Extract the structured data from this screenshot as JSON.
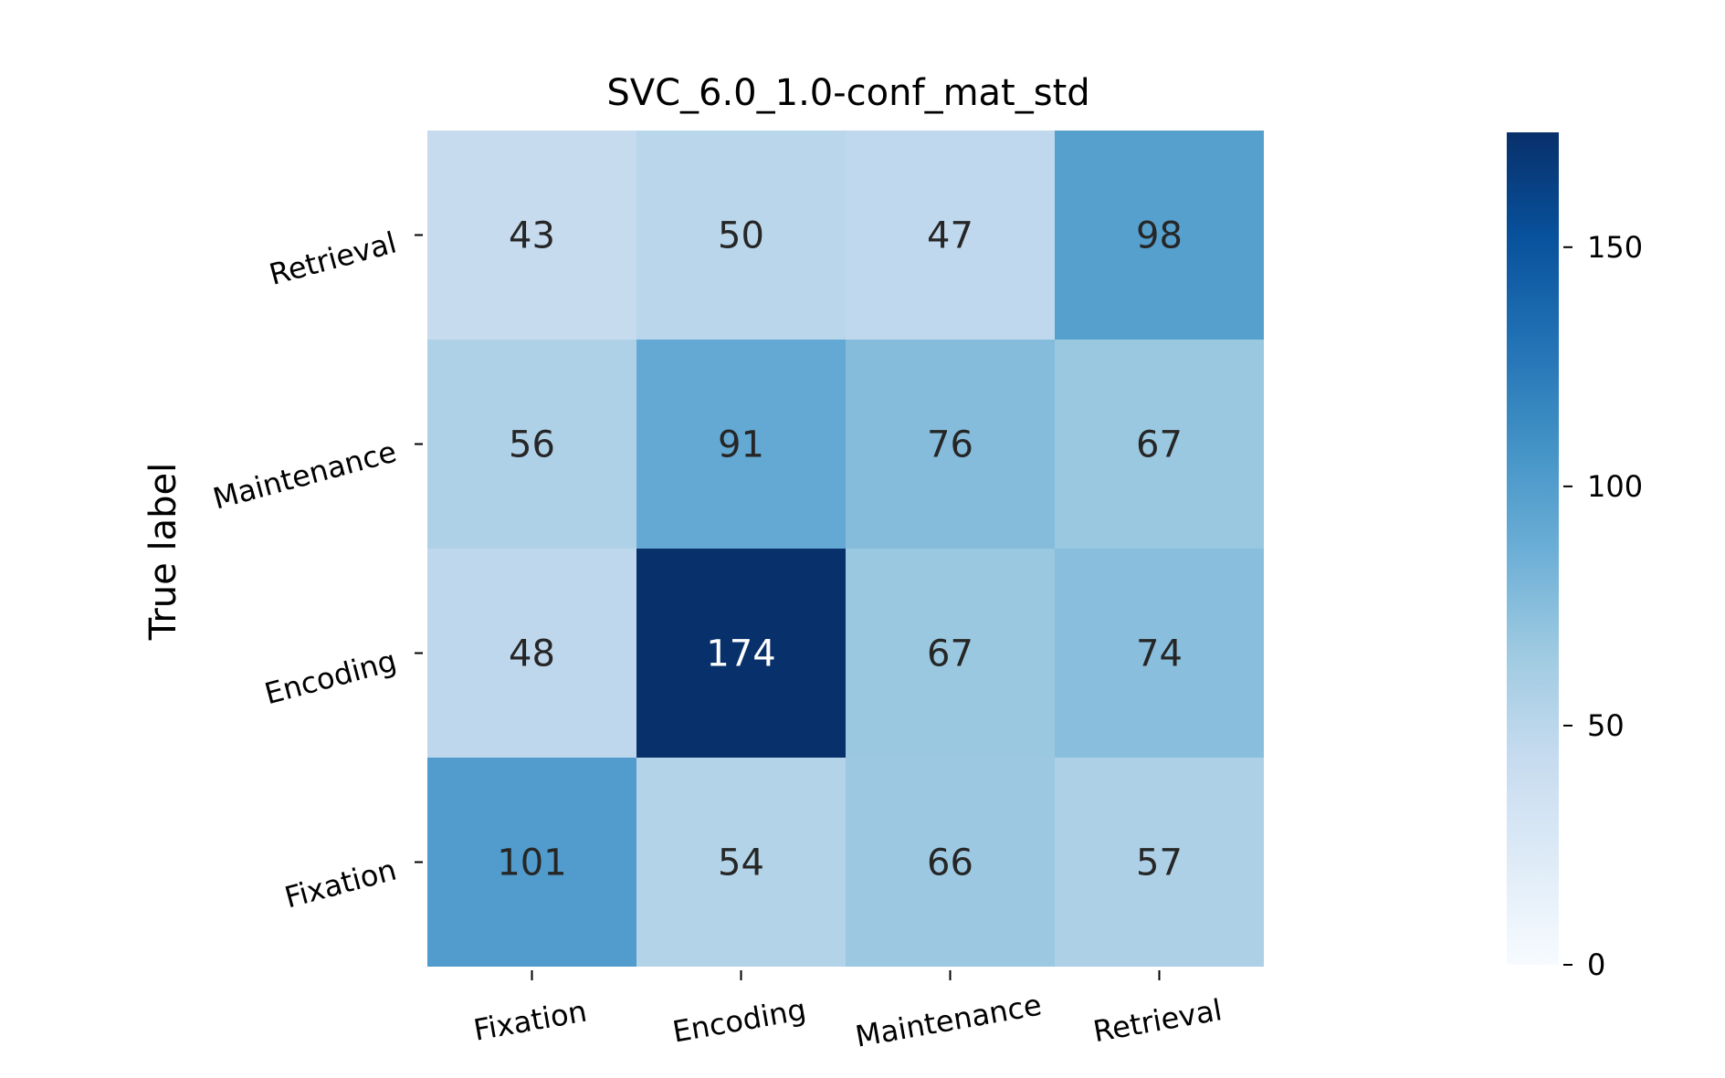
{
  "chart_data": {
    "type": "heatmap",
    "title": "SVC_6.0_1.0-conf_mat_std",
    "ylabel": "True label",
    "xlabel": "",
    "x_categories": [
      "Fixation",
      "Encoding",
      "Maintenance",
      "Retrieval"
    ],
    "y_categories_top_to_bottom": [
      "Retrieval",
      "Maintenance",
      "Encoding",
      "Fixation"
    ],
    "matrix_top_to_bottom": [
      [
        43,
        50,
        47,
        98
      ],
      [
        56,
        91,
        76,
        67
      ],
      [
        48,
        174,
        67,
        74
      ],
      [
        101,
        54,
        66,
        57
      ]
    ],
    "colormap": "Blues",
    "colormap_stops": [
      "#f7fbff",
      "#deebf7",
      "#c6dbef",
      "#9ecae1",
      "#6baed6",
      "#4292c6",
      "#2171b5",
      "#08519c",
      "#08306b"
    ],
    "vmin": 0,
    "vmax": 174,
    "colorbar": {
      "ticks": [
        0,
        50,
        100,
        150
      ],
      "tick_labels": [
        "0",
        "50",
        "100",
        "150"
      ]
    },
    "text_color_dark": "#262626",
    "text_color_light": "#ffffff"
  }
}
